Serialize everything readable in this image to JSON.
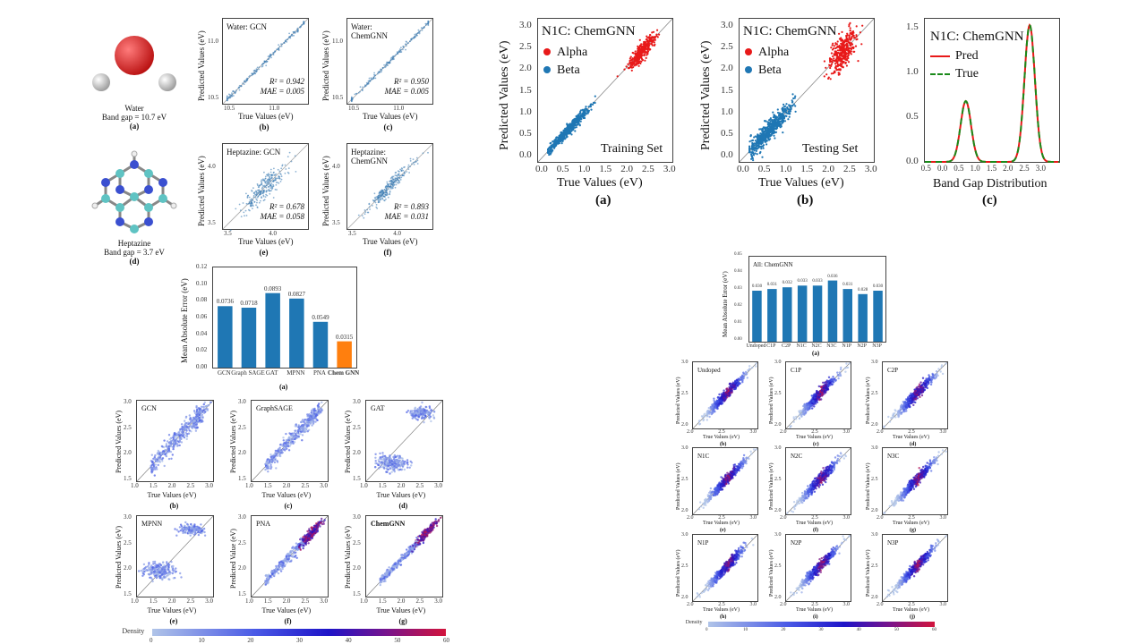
{
  "molecules": [
    {
      "name": "Water",
      "gap": "Band gap  = 10.7 eV",
      "cap": "(a)"
    },
    {
      "name": "Heptazine",
      "gap": "Band gap  = 3.7 eV",
      "cap": "(d)"
    }
  ],
  "small_panels": [
    {
      "title": "Water: GCN",
      "r2": "R² = 0.942",
      "mae": "MAE = 0.005",
      "cap": "(b)",
      "xticks": [
        "10.5",
        "11.0"
      ],
      "yticks": [
        "11.0",
        "10.5"
      ]
    },
    {
      "title": "Water:\nChemGNN",
      "r2": "R² = 0.950",
      "mae": "MAE = 0.005",
      "cap": "(c)",
      "xticks": [
        "10.5",
        "11.0"
      ],
      "yticks": [
        "11.0",
        "10.5"
      ]
    },
    {
      "title": "Heptazine: GCN",
      "r2": "R² = 0.678",
      "mae": "MAE = 0.058",
      "cap": "(e)",
      "xticks": [
        "3.5",
        "4.0"
      ],
      "yticks": [
        "4.0",
        "3.5"
      ]
    },
    {
      "title": "Heptazine:\nChemGNN",
      "r2": "R² = 0.893",
      "mae": "MAE = 0.031",
      "cap": "(f)",
      "xticks": [
        "3.5",
        "4.0"
      ],
      "yticks": [
        "4.0",
        "3.5"
      ]
    }
  ],
  "axis_text": {
    "true_ev": "True Values (eV)",
    "pred_ev": "Predicted Values (eV)",
    "pred_value": "Predicted Value (eV)",
    "mae_ev": "Mean Absolute Error (eV)",
    "band_gap_dist": "Band Gap Distribution",
    "density": "Density"
  },
  "top_panels": [
    {
      "title": "N1C: ChemGNN",
      "set": "Training Set",
      "cap": "(a)",
      "legend": [
        "Alpha",
        "Beta"
      ]
    },
    {
      "title": "N1C: ChemGNN",
      "set": "Testing Set",
      "cap": "(b)",
      "legend": [
        "Alpha",
        "Beta"
      ]
    },
    {
      "title": "N1C: ChemGNN",
      "cap": "(c)",
      "legend": [
        "Pred",
        "True"
      ]
    }
  ],
  "chart_data": [
    {
      "type": "bar",
      "categories": [
        "GCN",
        "Graph SAGE",
        "GAT",
        "MPNN",
        "PNA",
        "Chem GNN"
      ],
      "values": [
        0.0736,
        0.0718,
        0.0893,
        0.0827,
        0.0549,
        0.0315
      ],
      "value_labels": [
        "0.0736",
        "0.0718",
        "0.0893",
        "0.0827",
        "0.0549",
        "0.0315"
      ],
      "ylabel": "Mean Absolute Error (eV)",
      "ylim": [
        0,
        0.12
      ],
      "yticks": [
        "0.00",
        "0.02",
        "0.04",
        "0.06",
        "0.08",
        "0.10",
        "0.12"
      ],
      "colors": [
        "#1f77b4",
        "#1f77b4",
        "#1f77b4",
        "#1f77b4",
        "#1f77b4",
        "#ff7f0e"
      ],
      "cap": "(a)"
    },
    {
      "type": "bar",
      "title": "All: ChemGNN",
      "categories": [
        "Undoped",
        "C1P",
        "C2P",
        "N1C",
        "N2C",
        "N3C",
        "N1P",
        "N2P",
        "N3P"
      ],
      "values": [
        0.03,
        0.031,
        0.032,
        0.033,
        0.033,
        0.036,
        0.031,
        0.028,
        0.03
      ],
      "value_labels": [
        "0.030",
        "0.031",
        "0.032",
        "0.033",
        "0.033",
        "0.036",
        "0.031",
        "0.028",
        "0.030"
      ],
      "ylabel": "Mean Absolute Error (eV)",
      "ylim": [
        0,
        0.05
      ],
      "yticks": [
        "0.00",
        "0.01",
        "0.02",
        "0.03",
        "0.04",
        "0.05"
      ],
      "color": "#1f77b4",
      "cap": "(a)"
    },
    {
      "type": "line",
      "title": "N1C: ChemGNN",
      "xlabel": "Band Gap Distribution",
      "series": [
        {
          "name": "Pred"
        },
        {
          "name": "True"
        }
      ],
      "xticks": [
        "0.5",
        "0.0",
        "0.5",
        "1.0",
        "1.5",
        "2.0",
        "2.5",
        "3.0"
      ],
      "yticks": [
        "0.0",
        "0.5",
        "1.0",
        "1.5"
      ],
      "peaks": [
        {
          "x": 0.65,
          "y": 0.68
        },
        {
          "x": 2.6,
          "y": 1.53
        }
      ]
    }
  ],
  "scatter_grid_left": [
    {
      "title": "GCN",
      "cap": "(b)"
    },
    {
      "title": "GraphSAGE",
      "cap": "(c)"
    },
    {
      "title": "GAT",
      "cap": "(d)"
    },
    {
      "title": "MPNN",
      "cap": "(e)"
    },
    {
      "title": "PNA",
      "cap": "(f)"
    },
    {
      "title": "ChemGNN",
      "cap": "(g)"
    }
  ],
  "scatter_grid_right": [
    {
      "title": "Undoped",
      "cap": "(b)"
    },
    {
      "title": "C1P",
      "cap": "(c)"
    },
    {
      "title": "C2P",
      "cap": "(d)"
    },
    {
      "title": "N1C",
      "cap": "(e)"
    },
    {
      "title": "N2C",
      "cap": "(f)"
    },
    {
      "title": "N3C",
      "cap": "(g)"
    },
    {
      "title": "N1P",
      "cap": "(h)"
    },
    {
      "title": "N2P",
      "cap": "(i)"
    },
    {
      "title": "N3P",
      "cap": "(j)"
    }
  ],
  "density_ticks": [
    "0",
    "10",
    "20",
    "30",
    "40",
    "50",
    "60"
  ]
}
